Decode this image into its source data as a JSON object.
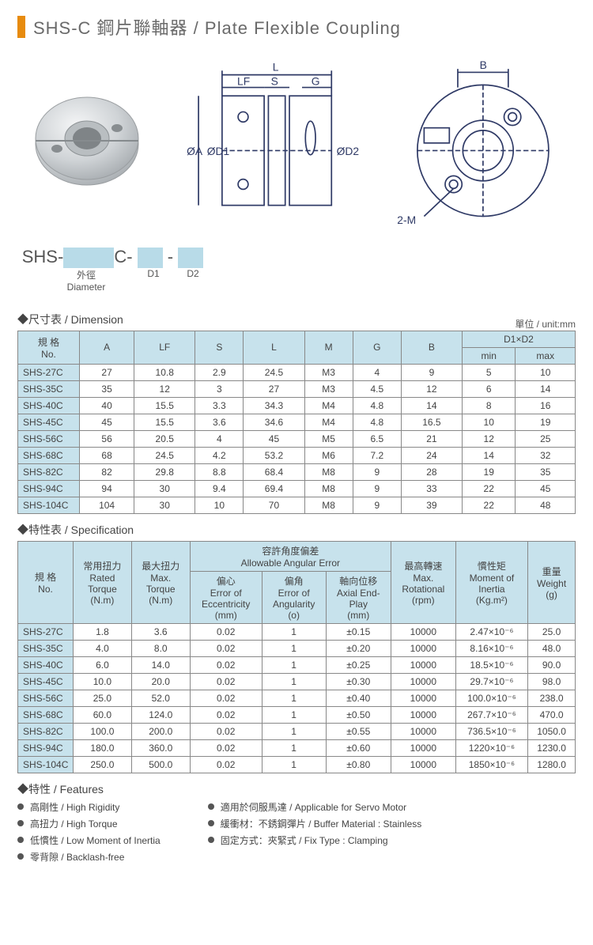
{
  "title": "SHS-C 鋼片聯軸器 / Plate Flexible Coupling",
  "colors": {
    "accent_orange": "#e78b0e",
    "header_blue": "#c7e2ec",
    "box_blue": "#b8dbe8",
    "text_gray": "#555555",
    "border_gray": "#888888"
  },
  "diagram_labels": {
    "L": "L",
    "LF": "LF",
    "S": "S",
    "G": "G",
    "OA": "ØA",
    "OD1": "ØD1",
    "OD2": "ØD2",
    "B": "B",
    "twoM": "2-M"
  },
  "part_code": {
    "prefix": "SHS-",
    "mid": "C-",
    "sep": "-",
    "label_outer_zh": "外徑",
    "label_outer_en": "Diameter",
    "label_d1": "D1",
    "label_d2": "D2"
  },
  "dim_section": {
    "header": "◆尺寸表 / Dimension",
    "unit": "單位 / unit:mm",
    "cols_top": [
      "規 格\nNo.",
      "A",
      "LF",
      "S",
      "L",
      "M",
      "G",
      "B"
    ],
    "span_header": "D1×D2",
    "span_sub": [
      "min",
      "max"
    ],
    "rows": [
      [
        "SHS-27C",
        "27",
        "10.8",
        "2.9",
        "24.5",
        "M3",
        "4",
        "9",
        "5",
        "10"
      ],
      [
        "SHS-35C",
        "35",
        "12",
        "3",
        "27",
        "M3",
        "4.5",
        "12",
        "6",
        "14"
      ],
      [
        "SHS-40C",
        "40",
        "15.5",
        "3.3",
        "34.3",
        "M4",
        "4.8",
        "14",
        "8",
        "16"
      ],
      [
        "SHS-45C",
        "45",
        "15.5",
        "3.6",
        "34.6",
        "M4",
        "4.8",
        "16.5",
        "10",
        "19"
      ],
      [
        "SHS-56C",
        "56",
        "20.5",
        "4",
        "45",
        "M5",
        "6.5",
        "21",
        "12",
        "25"
      ],
      [
        "SHS-68C",
        "68",
        "24.5",
        "4.2",
        "53.2",
        "M6",
        "7.2",
        "24",
        "14",
        "32"
      ],
      [
        "SHS-82C",
        "82",
        "29.8",
        "8.8",
        "68.4",
        "M8",
        "9",
        "28",
        "19",
        "35"
      ],
      [
        "SHS-94C",
        "94",
        "30",
        "9.4",
        "69.4",
        "M8",
        "9",
        "33",
        "22",
        "45"
      ],
      [
        "SHS-104C",
        "104",
        "30",
        "10",
        "70",
        "M8",
        "9",
        "39",
        "22",
        "48"
      ]
    ]
  },
  "spec_section": {
    "header": "◆特性表 / Specification",
    "col_no": "規 格\nNo.",
    "col_rated": "常用扭力\nRated\nTorque\n(N.m)",
    "col_max": "最大扭力\nMax.\nTorque\n(N.m)",
    "col_allow_span": "容許角度偏差\nAllowable Angular Error",
    "col_ecc": "偏心\nError of\nEccentricity\n(mm)",
    "col_ang": "偏角\nError of\nAngularity\n(o)",
    "col_axial": "軸向位移\nAxial End-\nPlay\n(mm)",
    "col_rpm": "最高轉速\nMax.\nRotational\n(rpm)",
    "col_inertia": "慣性矩\nMoment of\nInertia\n(Kg.m²)",
    "col_weight": "重量\nWeight\n(g)",
    "rows": [
      [
        "SHS-27C",
        "1.8",
        "3.6",
        "0.02",
        "1",
        "±0.15",
        "10000",
        "2.47×10⁻⁶",
        "25.0"
      ],
      [
        "SHS-35C",
        "4.0",
        "8.0",
        "0.02",
        "1",
        "±0.20",
        "10000",
        "8.16×10⁻⁶",
        "48.0"
      ],
      [
        "SHS-40C",
        "6.0",
        "14.0",
        "0.02",
        "1",
        "±0.25",
        "10000",
        "18.5×10⁻⁶",
        "90.0"
      ],
      [
        "SHS-45C",
        "10.0",
        "20.0",
        "0.02",
        "1",
        "±0.30",
        "10000",
        "29.7×10⁻⁶",
        "98.0"
      ],
      [
        "SHS-56C",
        "25.0",
        "52.0",
        "0.02",
        "1",
        "±0.40",
        "10000",
        "100.0×10⁻⁶",
        "238.0"
      ],
      [
        "SHS-68C",
        "60.0",
        "124.0",
        "0.02",
        "1",
        "±0.50",
        "10000",
        "267.7×10⁻⁶",
        "470.0"
      ],
      [
        "SHS-82C",
        "100.0",
        "200.0",
        "0.02",
        "1",
        "±0.55",
        "10000",
        "736.5×10⁻⁶",
        "1050.0"
      ],
      [
        "SHS-94C",
        "180.0",
        "360.0",
        "0.02",
        "1",
        "±0.60",
        "10000",
        "1220×10⁻⁶",
        "1230.0"
      ],
      [
        "SHS-104C",
        "250.0",
        "500.0",
        "0.02",
        "1",
        "±0.80",
        "10000",
        "1850×10⁻⁶",
        "1280.0"
      ]
    ]
  },
  "features_section": {
    "header": "◆特性 / Features",
    "left": [
      "高剛性 / High Rigidity",
      "高扭力 / High Torque",
      "低慣性 / Low Moment of Inertia",
      "零背隙 / Backlash-free"
    ],
    "right": [
      "適用於伺服馬達 / Applicable for Servo Motor",
      "緩衝材：不銹鋼彈片 / Buffer Material : Stainless",
      "固定方式：夾緊式 / Fix Type : Clamping"
    ]
  }
}
